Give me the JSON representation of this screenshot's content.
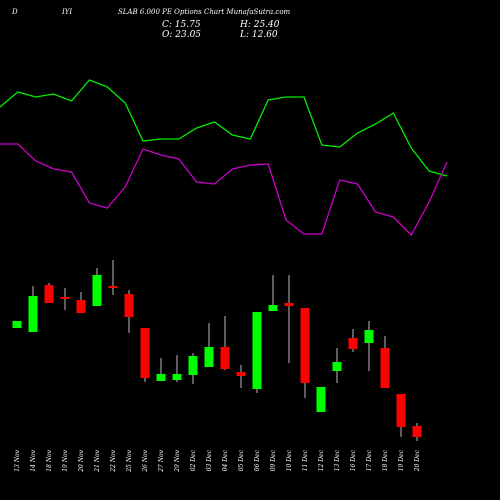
{
  "chart_data": {
    "type": "candlestick",
    "title": "SLAB 6.000 PE Options Chart MunafaSutra.com",
    "annotations": [
      "D",
      "IYI",
      "C: 15.75",
      "H: 25.40",
      "O: 23.05",
      "L: 12.60"
    ],
    "categories": [
      "13 Nov",
      "14 Nov",
      "18 Nov",
      "19 Nov",
      "20 Nov",
      "21 Nov",
      "22 Nov",
      "25 Nov",
      "26 Nov",
      "27 Nov",
      "29 Nov",
      "02 Dec",
      "03 Dec",
      "04 Dec",
      "05 Dec",
      "06 Dec",
      "09 Dec",
      "10 Dec",
      "11 Dec",
      "12 Dec",
      "13 Dec",
      "16 Dec",
      "17 Dec",
      "18 Dec",
      "19 Dec",
      "20 Dec"
    ],
    "open": [
      142,
      138,
      185,
      173,
      170,
      164,
      184,
      176,
      142,
      89,
      90,
      95,
      103,
      123,
      98,
      81,
      159,
      167,
      162,
      58,
      99,
      132,
      127,
      122,
      76,
      44
    ],
    "high": [
      149,
      184,
      187,
      182,
      178,
      202,
      210,
      180,
      142,
      112,
      115,
      117,
      147,
      154,
      105,
      158,
      195,
      195,
      162,
      83,
      122,
      141,
      149,
      134,
      76,
      47
    ],
    "low": [
      142,
      138,
      167,
      160,
      157,
      164,
      175,
      137,
      88,
      89,
      88,
      86,
      103,
      100,
      82,
      77,
      159,
      107,
      72,
      58,
      87,
      118,
      99,
      82,
      33,
      29
    ],
    "close": [
      149,
      174,
      167,
      171,
      157,
      195,
      182,
      153,
      92,
      96,
      96,
      114,
      123,
      101,
      94,
      158,
      165,
      164,
      87,
      83,
      108,
      121,
      140,
      82,
      43,
      33
    ],
    "up_color": "#00ff00",
    "down_color": "#ff0000",
    "ylim": [
      0,
      220
    ],
    "lines": [
      {
        "color": "#00ee00",
        "values": [
          193,
          208,
          203,
          206,
          199,
          220,
          213,
          197,
          159,
          161,
          161,
          172,
          178,
          165,
          161,
          200,
          203,
          203,
          155,
          153,
          167,
          176,
          187,
          152,
          129,
          124
        ]
      },
      {
        "color": "#cc00cc",
        "values": [
          156,
          156,
          139,
          131,
          128,
          97,
          92,
          113,
          151,
          145,
          141,
          118,
          116,
          131,
          135,
          136,
          80,
          66,
          66,
          120,
          116,
          88,
          83,
          65,
          98,
          138
        ]
      }
    ],
    "lines_ylim": [
      0,
      300
    ]
  }
}
